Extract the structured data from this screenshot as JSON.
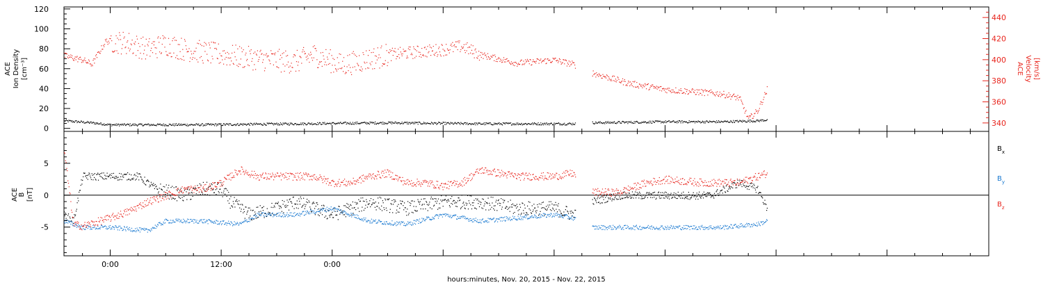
{
  "chart_data": [
    {
      "type": "scatter",
      "ylabel_left_lines": [
        "ACE",
        "Ion Density",
        "[cm⁻³]"
      ],
      "ylabel_right_lines": [
        "ACE",
        "Velocity",
        "[km/s]"
      ],
      "ylim_left": [
        -3,
        122
      ],
      "ylim_right": [
        332,
        450
      ],
      "yticks_left": [
        0,
        20,
        40,
        60,
        80,
        100,
        120
      ],
      "yticks_right": [
        340,
        360,
        380,
        400,
        420,
        440
      ],
      "xlim_hours": [
        -5,
        95
      ],
      "data_span_hours": [
        -5,
        71
      ],
      "data_gap_hours": [
        50.3,
        52.1
      ],
      "series": [
        {
          "name": "Ion Density",
          "axis": "left",
          "color": "#000000",
          "profile": [
            [
              -5,
              8
            ],
            [
              -2,
              6
            ],
            [
              0,
              4
            ],
            [
              10,
              4
            ],
            [
              20,
              5
            ],
            [
              30,
              6
            ],
            [
              40,
              5
            ],
            [
              50,
              5
            ],
            [
              52,
              6
            ],
            [
              60,
              7
            ],
            [
              66,
              7
            ],
            [
              70,
              8
            ],
            [
              71,
              9
            ]
          ]
        },
        {
          "name": "Velocity",
          "axis": "right",
          "color": "#e8241c",
          "profile": [
            [
              -5,
              404
            ],
            [
              -3,
              400
            ],
            [
              -2,
              396
            ],
            [
              -0.5,
              418
            ],
            [
              2,
              416
            ],
            [
              4,
              410
            ],
            [
              6,
              415
            ],
            [
              8,
              410
            ],
            [
              12,
              405
            ],
            [
              16,
              401
            ],
            [
              20,
              398
            ],
            [
              22,
              405
            ],
            [
              25,
              395
            ],
            [
              30,
              405
            ],
            [
              36,
              410
            ],
            [
              38,
              413
            ],
            [
              40,
              405
            ],
            [
              44,
              397
            ],
            [
              48,
              400
            ],
            [
              50,
              396
            ],
            [
              52,
              388
            ],
            [
              56,
              378
            ],
            [
              60,
              372
            ],
            [
              66,
              368
            ],
            [
              68,
              364
            ],
            [
              69,
              344
            ],
            [
              70,
              352
            ],
            [
              71,
              372
            ]
          ]
        }
      ]
    },
    {
      "type": "scatter",
      "ylabel_lines": [
        "ACE",
        "B",
        "[nT]"
      ],
      "ylim": [
        -9.5,
        10
      ],
      "yticks": [
        -5,
        0,
        5
      ],
      "zero_line": true,
      "xlim_hours": [
        -5,
        95
      ],
      "data_span_hours": [
        -5,
        71
      ],
      "data_gap_hours": [
        50.3,
        52.1
      ],
      "series": [
        {
          "name": "Bx",
          "label_main": "B",
          "label_sub": "x",
          "color": "#000000",
          "profile": [
            [
              -5,
              -3
            ],
            [
              -4,
              -4
            ],
            [
              -3,
              3
            ],
            [
              0,
              3
            ],
            [
              3,
              3
            ],
            [
              5,
              1
            ],
            [
              8,
              0
            ],
            [
              10,
              1
            ],
            [
              12,
              1
            ],
            [
              13,
              -1
            ],
            [
              15,
              -3
            ],
            [
              18,
              -2
            ],
            [
              20,
              -1
            ],
            [
              24,
              -3
            ],
            [
              28,
              -1
            ],
            [
              32,
              -2
            ],
            [
              36,
              -1
            ],
            [
              40,
              -1
            ],
            [
              44,
              -2
            ],
            [
              48,
              -2
            ],
            [
              50,
              -3
            ],
            [
              52,
              -1
            ],
            [
              55,
              0
            ],
            [
              60,
              0
            ],
            [
              65,
              0
            ],
            [
              68,
              2
            ],
            [
              70,
              1
            ],
            [
              71,
              -2
            ]
          ]
        },
        {
          "name": "By",
          "label_main": "B",
          "label_sub": "y",
          "color": "#1878d0",
          "profile": [
            [
              -5,
              -4
            ],
            [
              -3,
              -5
            ],
            [
              0,
              -5
            ],
            [
              4,
              -5.5
            ],
            [
              6,
              -4
            ],
            [
              10,
              -4
            ],
            [
              14,
              -4.5
            ],
            [
              16,
              -3
            ],
            [
              20,
              -3
            ],
            [
              24,
              -2
            ],
            [
              28,
              -4
            ],
            [
              32,
              -4.5
            ],
            [
              36,
              -3
            ],
            [
              40,
              -4
            ],
            [
              44,
              -3.5
            ],
            [
              48,
              -3
            ],
            [
              50,
              -3.5
            ],
            [
              52,
              -5
            ],
            [
              60,
              -5
            ],
            [
              66,
              -5
            ],
            [
              70,
              -4.5
            ],
            [
              71,
              -4
            ]
          ]
        },
        {
          "name": "Bz",
          "label_main": "B",
          "label_sub": "z",
          "color": "#e8241c",
          "profile": [
            [
              -5,
              7
            ],
            [
              -4,
              -4.5
            ],
            [
              -3,
              -4.8
            ],
            [
              0,
              -3.5
            ],
            [
              2,
              -2.5
            ],
            [
              4,
              -1
            ],
            [
              6,
              0
            ],
            [
              8,
              1
            ],
            [
              10,
              1
            ],
            [
              12,
              2
            ],
            [
              14,
              4
            ],
            [
              16,
              3
            ],
            [
              18,
              3
            ],
            [
              20,
              3
            ],
            [
              22,
              3
            ],
            [
              24,
              2
            ],
            [
              26,
              2
            ],
            [
              28,
              3
            ],
            [
              30,
              3.5
            ],
            [
              32,
              2
            ],
            [
              34,
              2
            ],
            [
              36,
              1.5
            ],
            [
              38,
              2
            ],
            [
              40,
              4
            ],
            [
              44,
              3
            ],
            [
              48,
              3
            ],
            [
              50,
              3.5
            ],
            [
              52,
              0.5
            ],
            [
              55,
              0.5
            ],
            [
              58,
              2
            ],
            [
              60,
              2.5
            ],
            [
              64,
              2
            ],
            [
              68,
              2
            ],
            [
              70,
              3
            ],
            [
              71,
              3.5
            ]
          ]
        }
      ]
    }
  ],
  "x_axis": {
    "tick_labels": [
      "0:00",
      "12:00",
      "0:00"
    ],
    "tick_hours": [
      0,
      12,
      24
    ],
    "caption": "hours:minutes, Nov. 20, 2015 - Nov. 22, 2015"
  }
}
